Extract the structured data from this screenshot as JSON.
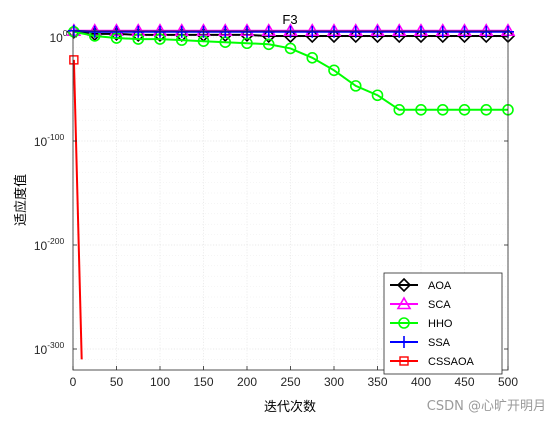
{
  "chart_data": {
    "type": "line",
    "title": "F3",
    "xlabel": "迭代次数",
    "ylabel": "适应度值",
    "xlim": [
      0,
      500
    ],
    "ylim_exponent": [
      -320,
      0
    ],
    "yscale": "log",
    "grid": true,
    "legend_position": "bottom-right",
    "x_ticks": [
      0,
      50,
      100,
      150,
      200,
      250,
      300,
      350,
      400,
      450,
      500
    ],
    "y_ticks": [
      {
        "exp": 0,
        "base": "10",
        "sup": "0"
      },
      {
        "exp": -100,
        "base": "10",
        "sup": "-100"
      },
      {
        "exp": -200,
        "base": "10",
        "sup": "-200"
      },
      {
        "exp": -300,
        "base": "10",
        "sup": "-300"
      }
    ],
    "series": [
      {
        "name": "AOA",
        "color": "#000000",
        "marker": "diamond",
        "x": [
          1,
          25,
          50,
          75,
          100,
          125,
          150,
          175,
          200,
          225,
          250,
          275,
          300,
          325,
          350,
          375,
          400,
          425,
          450,
          475,
          500
        ],
        "log10_y": [
          5,
          3,
          3,
          2,
          2,
          2,
          2,
          2,
          2,
          1,
          1,
          1,
          1,
          1,
          1,
          1,
          1,
          1,
          1,
          1,
          1
        ]
      },
      {
        "name": "SCA",
        "color": "#ff00ff",
        "marker": "triangle",
        "x": [
          1,
          25,
          50,
          75,
          100,
          125,
          150,
          175,
          200,
          225,
          250,
          275,
          300,
          325,
          350,
          375,
          400,
          425,
          450,
          475,
          500
        ],
        "log10_y": [
          6,
          6,
          6,
          6,
          6,
          6,
          6,
          6,
          6,
          6,
          6,
          6,
          6,
          6,
          6,
          6,
          6,
          6,
          6,
          6,
          6
        ]
      },
      {
        "name": "HHO",
        "color": "#00ff00",
        "marker": "circle",
        "x": [
          1,
          25,
          50,
          75,
          100,
          125,
          150,
          175,
          200,
          225,
          250,
          275,
          300,
          325,
          350,
          375,
          400,
          425,
          450,
          475,
          500
        ],
        "log10_y": [
          5,
          1,
          -1,
          -2,
          -2,
          -3,
          -4,
          -5,
          -6,
          -7,
          -11,
          -20,
          -32,
          -47,
          -56,
          -70,
          -70,
          -70,
          -70,
          -70,
          -70
        ]
      },
      {
        "name": "SSA",
        "color": "#0000ff",
        "marker": "plus",
        "x": [
          1,
          25,
          50,
          75,
          100,
          125,
          150,
          175,
          200,
          225,
          250,
          275,
          300,
          325,
          350,
          375,
          400,
          425,
          450,
          475,
          500
        ],
        "log10_y": [
          6,
          5,
          5,
          5,
          5,
          5,
          5,
          5,
          5,
          5,
          5,
          5,
          5,
          5,
          5,
          5,
          5,
          5,
          5,
          5,
          5
        ]
      },
      {
        "name": "CSSAOA",
        "color": "#ff0000",
        "marker": "square",
        "x": [
          1,
          10
        ],
        "log10_y": [
          -22,
          -310
        ]
      }
    ]
  },
  "watermark": "CSDN @心旷开明月"
}
